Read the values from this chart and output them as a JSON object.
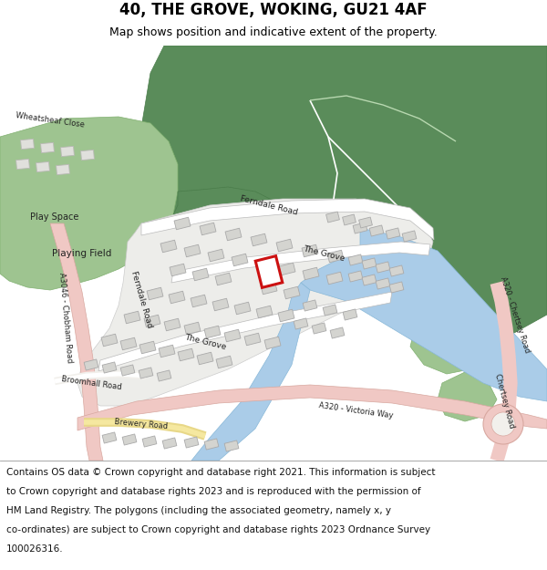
{
  "title": "40, THE GROVE, WOKING, GU21 4AF",
  "subtitle": "Map shows position and indicative extent of the property.",
  "footer_lines": [
    "Contains OS data © Crown copyright and database right 2021. This information is subject",
    "to Crown copyright and database rights 2023 and is reproduced with the permission of",
    "HM Land Registry. The polygons (including the associated geometry, namely x, y",
    "co-ordinates) are subject to Crown copyright and database rights 2023 Ordnance Survey",
    "100026316."
  ],
  "bg_white": "#ffffff",
  "map_bg": "#f2f0ec",
  "green_dark": "#5a8c5a",
  "green_light": "#9ec490",
  "green_mid": "#7aac7a",
  "road_pink": "#f0c8c4",
  "road_yellow": "#e8d888",
  "road_white": "#ffffff",
  "road_outline": "#cccccc",
  "water_color": "#aacce8",
  "building_fill": "#d4d4d0",
  "building_edge": "#aaaaaa",
  "highlight_color": "#cc1111",
  "title_fontsize": 12,
  "subtitle_fontsize": 9,
  "footer_fontsize": 7.5,
  "label_fontsize": 6.5,
  "label_color": "#222222"
}
